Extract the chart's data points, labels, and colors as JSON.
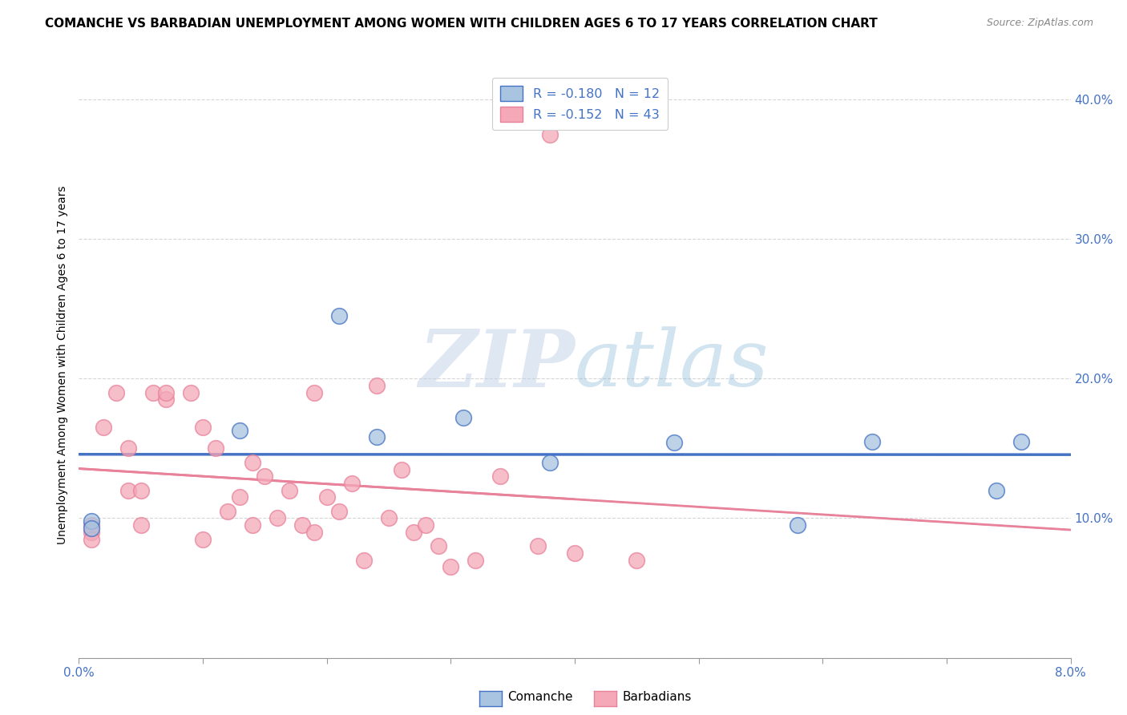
{
  "title": "COMANCHE VS BARBADIAN UNEMPLOYMENT AMONG WOMEN WITH CHILDREN AGES 6 TO 17 YEARS CORRELATION CHART",
  "source": "Source: ZipAtlas.com",
  "ylabel": "Unemployment Among Women with Children Ages 6 to 17 years",
  "legend_comanche": "R = -0.180   N = 12",
  "legend_barbadians": "R = -0.152   N = 43",
  "legend_labels": [
    "Comanche",
    "Barbadians"
  ],
  "comanche_color": "#a8c4e0",
  "barbadians_color": "#f4a8b8",
  "comanche_line_color": "#4472c4",
  "barbadians_line_color": "#e8829a",
  "xlim": [
    0.0,
    0.08
  ],
  "ylim": [
    0.0,
    0.42
  ],
  "comanche_x": [
    0.001,
    0.001,
    0.013,
    0.021,
    0.024,
    0.031,
    0.038,
    0.048,
    0.058,
    0.064,
    0.074,
    0.076
  ],
  "comanche_y": [
    0.098,
    0.093,
    0.163,
    0.245,
    0.158,
    0.172,
    0.14,
    0.154,
    0.095,
    0.155,
    0.12,
    0.155
  ],
  "barbadians_x": [
    0.001,
    0.001,
    0.001,
    0.002,
    0.003,
    0.004,
    0.004,
    0.005,
    0.005,
    0.006,
    0.007,
    0.007,
    0.009,
    0.01,
    0.01,
    0.011,
    0.012,
    0.013,
    0.014,
    0.014,
    0.015,
    0.016,
    0.017,
    0.018,
    0.019,
    0.019,
    0.02,
    0.021,
    0.022,
    0.023,
    0.024,
    0.025,
    0.026,
    0.027,
    0.028,
    0.029,
    0.03,
    0.032,
    0.034,
    0.037,
    0.038,
    0.04,
    0.045
  ],
  "barbadians_y": [
    0.095,
    0.09,
    0.085,
    0.165,
    0.19,
    0.15,
    0.12,
    0.12,
    0.095,
    0.19,
    0.185,
    0.19,
    0.19,
    0.165,
    0.085,
    0.15,
    0.105,
    0.115,
    0.14,
    0.095,
    0.13,
    0.1,
    0.12,
    0.095,
    0.09,
    0.19,
    0.115,
    0.105,
    0.125,
    0.07,
    0.195,
    0.1,
    0.135,
    0.09,
    0.095,
    0.08,
    0.065,
    0.07,
    0.13,
    0.08,
    0.375,
    0.075,
    0.07
  ],
  "watermark_zip": "ZIP",
  "watermark_atlas": "atlas",
  "background_color": "#ffffff",
  "grid_color": "#cccccc"
}
